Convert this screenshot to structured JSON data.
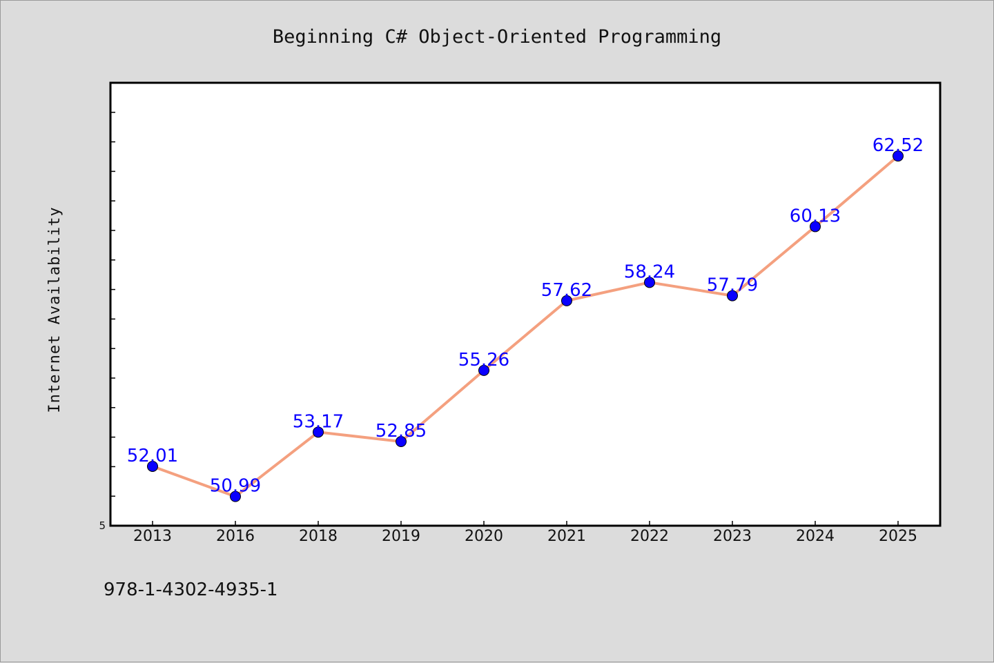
{
  "chart_data": {
    "type": "line",
    "title": "Beginning C# Object-Oriented Programming",
    "ylabel": "Internet Availability",
    "xlabel": "",
    "categories": [
      "2013",
      "2016",
      "2018",
      "2019",
      "2020",
      "2021",
      "2022",
      "2023",
      "2024",
      "2025"
    ],
    "series": [
      {
        "values": [
          52.01,
          50.99,
          53.17,
          52.85,
          55.26,
          57.62,
          58.24,
          57.79,
          60.13,
          62.52
        ],
        "labels": [
          "52.01",
          "50.99",
          "53.17",
          "52.85",
          "55.26",
          "57.62",
          "58.24",
          "57.79",
          "60.13",
          "62.52"
        ]
      }
    ],
    "y_tick_label": "5",
    "ylim": [
      50,
      65
    ],
    "y_minor_tick_step": 1,
    "grid": false,
    "colors": {
      "line": "#f4a07f",
      "marker": "#0a00ff",
      "label": "#0a00ff",
      "plot_bg": "#ffffff",
      "page_bg": "#dcdcdc"
    }
  },
  "footer": {
    "isbn": "978-1-4302-4935-1"
  }
}
